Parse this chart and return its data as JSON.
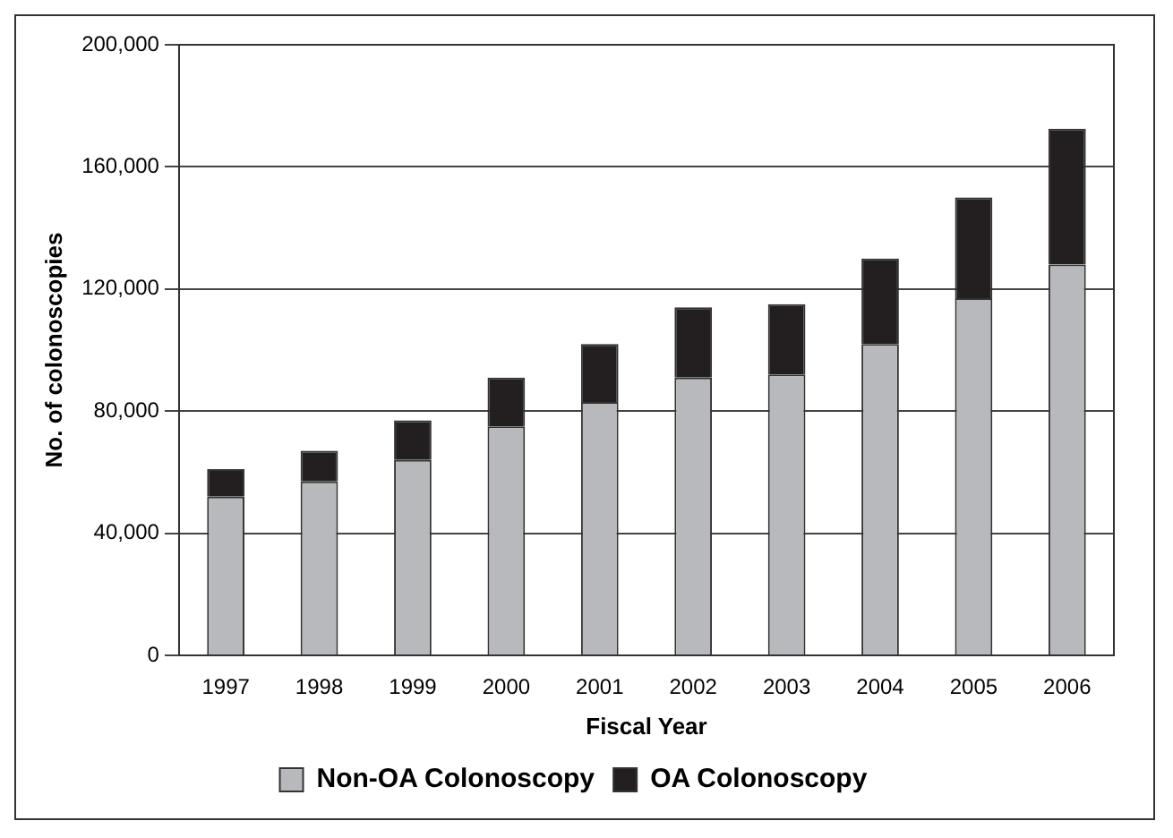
{
  "chart_data": {
    "type": "bar",
    "stacked": true,
    "xlabel": "Fiscal Year",
    "ylabel": "No. of colonoscopies",
    "categories": [
      "1997",
      "1998",
      "1999",
      "2000",
      "2001",
      "2002",
      "2003",
      "2004",
      "2005",
      "2006"
    ],
    "series": [
      {
        "name": "Non-OA Colonoscopy",
        "color": "#b8b9bc",
        "values": [
          52000,
          57000,
          64000,
          75000,
          83000,
          91000,
          92000,
          102000,
          117000,
          128000
        ]
      },
      {
        "name": "OA Colonoscopy",
        "color": "#231f20",
        "values": [
          9000,
          10000,
          13000,
          16000,
          19000,
          23000,
          23000,
          28000,
          33000,
          44500
        ]
      }
    ],
    "ylim": [
      0,
      200000
    ],
    "yticks": [
      {
        "value": 0,
        "label": "0"
      },
      {
        "value": 40000,
        "label": "40,000"
      },
      {
        "value": 80000,
        "label": "80,000"
      },
      {
        "value": 120000,
        "label": "120,000"
      },
      {
        "value": 160000,
        "label": "160,000"
      },
      {
        "value": 200000,
        "label": "200,000"
      }
    ],
    "grid": "y",
    "legend": "bottom"
  }
}
